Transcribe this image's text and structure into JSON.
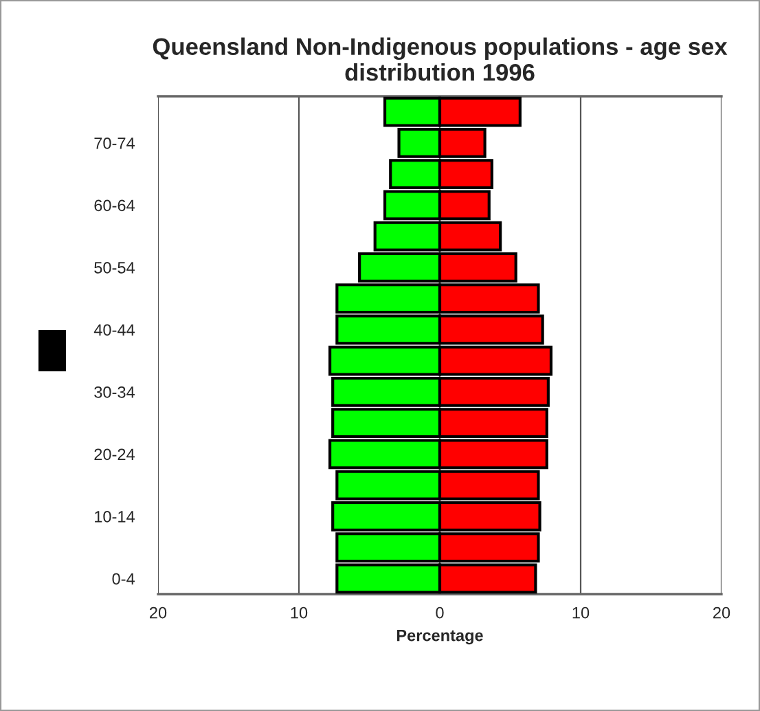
{
  "chart_data": {
    "type": "bar",
    "orientation": "horizontal",
    "stacked": true,
    "title": "Queensland Non-Indigenous populations - age sex distribution 1996",
    "xlabel": "Percentage",
    "categories": [
      null,
      "70-74",
      null,
      "60-64",
      null,
      "50-54",
      null,
      "40-44",
      null,
      "30-34",
      null,
      "20-24",
      null,
      "10-14",
      null,
      "0-4"
    ],
    "series": [
      {
        "color": "#00ff00",
        "values": [
          -3.9,
          -2.9,
          -3.5,
          -3.9,
          -4.6,
          -5.7,
          -7.3,
          -7.3,
          -7.8,
          -7.6,
          -7.6,
          -7.8,
          -7.3,
          -7.6,
          -7.3,
          -7.3
        ]
      },
      {
        "color": "#ff0000",
        "values": [
          5.7,
          3.2,
          3.7,
          3.5,
          4.3,
          5.4,
          7.0,
          7.3,
          7.9,
          7.7,
          7.6,
          7.6,
          7.0,
          7.1,
          7.0,
          6.8
        ]
      }
    ],
    "xlim": [
      -20,
      20
    ],
    "xticks": [
      {
        "value": -20,
        "label": "20"
      },
      {
        "value": -10,
        "label": "10"
      },
      0,
      10,
      20
    ],
    "grid": "x",
    "legend": false
  }
}
